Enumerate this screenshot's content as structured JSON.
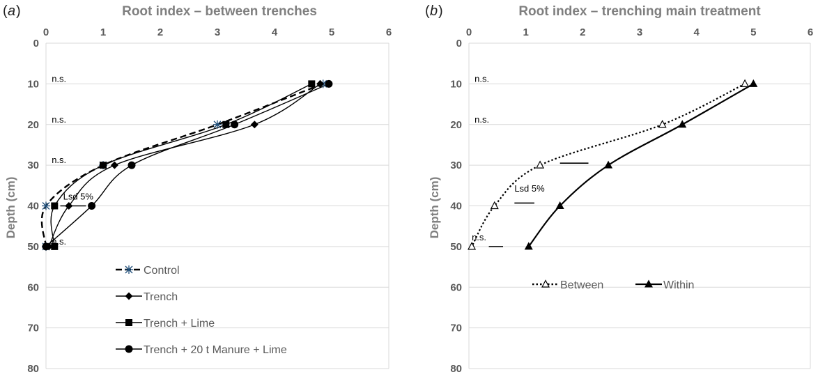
{
  "chart_data": [
    {
      "type": "line",
      "panel_label": "a",
      "title": "Root index – between trenches",
      "xlabel": "",
      "ylabel": "Depth (cm)",
      "xlim": [
        0,
        6
      ],
      "ylim": [
        0,
        80
      ],
      "y_inverted": true,
      "x_axis_position": "top",
      "x_ticks": [
        "0",
        "1",
        "2",
        "3",
        "4",
        "5",
        "6"
      ],
      "y_ticks": [
        "0",
        "10",
        "20",
        "30",
        "40",
        "50",
        "60",
        "70",
        "80"
      ],
      "grid": true,
      "legend_position": "bottom-center",
      "series": [
        {
          "name": "Control",
          "marker": "star",
          "dashed": true,
          "points": [
            [
              4.85,
              10
            ],
            [
              3.0,
              20
            ],
            [
              1.0,
              30
            ],
            [
              0.0,
              40
            ],
            [
              0.0,
              50
            ]
          ]
        },
        {
          "name": "Trench",
          "marker": "diamond",
          "dashed": false,
          "points": [
            [
              4.8,
              10
            ],
            [
              3.65,
              20
            ],
            [
              1.2,
              30
            ],
            [
              0.4,
              40
            ],
            [
              0.05,
              50
            ]
          ]
        },
        {
          "name": "Trench + Lime",
          "marker": "square",
          "dashed": false,
          "points": [
            [
              4.65,
              10
            ],
            [
              3.15,
              20
            ],
            [
              1.0,
              30
            ],
            [
              0.15,
              40
            ],
            [
              0.15,
              50
            ]
          ]
        },
        {
          "name": "Trench + 20 t Manure + Lime",
          "marker": "circle",
          "dashed": false,
          "points": [
            [
              4.95,
              10
            ],
            [
              3.3,
              20
            ],
            [
              1.5,
              30
            ],
            [
              0.8,
              40
            ],
            [
              0.0,
              50
            ]
          ]
        }
      ],
      "annotations": [
        {
          "text": "n.s.",
          "x": 0.1,
          "y": 10
        },
        {
          "text": "n.s.",
          "x": 0.1,
          "y": 20
        },
        {
          "text": "n.s.",
          "x": 0.1,
          "y": 30
        },
        {
          "text": "Lsd 5%",
          "x": 0.3,
          "y": 39
        },
        {
          "text": "n.s.",
          "x": 0.1,
          "y": 50
        }
      ],
      "lsd_bar": {
        "x_start": 0.25,
        "x_end": 0.7,
        "y": 40
      }
    },
    {
      "type": "line",
      "panel_label": "b",
      "title": "Root index – trenching main treatment",
      "xlabel": "",
      "ylabel": "Depth (cm)",
      "xlim": [
        0,
        6
      ],
      "ylim": [
        0,
        80
      ],
      "y_inverted": true,
      "x_axis_position": "top",
      "x_ticks": [
        "0",
        "1",
        "2",
        "3",
        "4",
        "5",
        "6"
      ],
      "y_ticks": [
        "0",
        "10",
        "20",
        "30",
        "40",
        "50",
        "60",
        "70",
        "80"
      ],
      "grid": true,
      "legend_position": "middle-center",
      "series": [
        {
          "name": "Between",
          "marker": "triangle-open",
          "dashed": true,
          "points": [
            [
              4.85,
              10
            ],
            [
              3.4,
              20
            ],
            [
              1.25,
              30
            ],
            [
              0.45,
              40
            ],
            [
              0.05,
              50
            ]
          ]
        },
        {
          "name": "Within",
          "marker": "triangle-filled",
          "dashed": false,
          "points": [
            [
              5.0,
              10
            ],
            [
              3.75,
              20
            ],
            [
              2.45,
              30
            ],
            [
              1.6,
              40
            ],
            [
              1.05,
              50
            ]
          ]
        }
      ],
      "annotations": [
        {
          "text": "n.s.",
          "x": 0.1,
          "y": 10
        },
        {
          "text": "n.s.",
          "x": 0.1,
          "y": 20
        },
        {
          "text": "Lsd 5%",
          "x": 0.8,
          "y": 37
        },
        {
          "text": "n.s.",
          "x": 0.05,
          "y": 49
        }
      ],
      "lsd_bars": [
        {
          "x_start": 1.6,
          "x_end": 2.1,
          "y": 29.5
        },
        {
          "x_start": 0.8,
          "x_end": 1.15,
          "y": 39.3
        },
        {
          "x_start": 0.35,
          "x_end": 0.6,
          "y": 50
        }
      ]
    }
  ]
}
